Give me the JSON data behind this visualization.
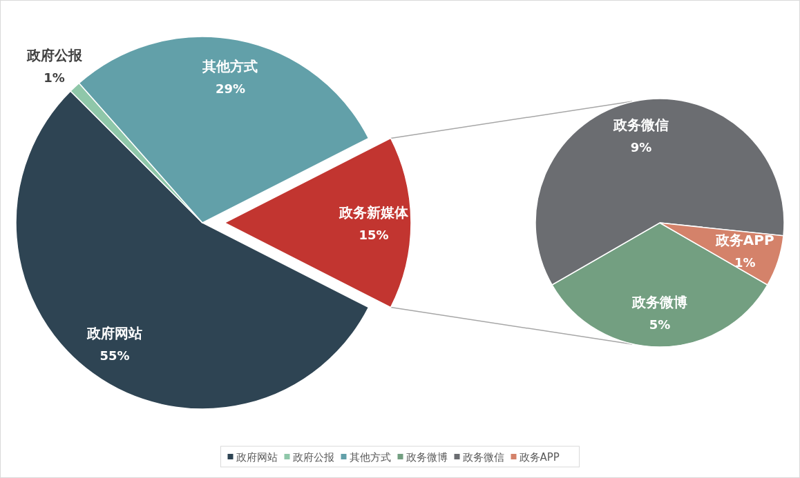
{
  "chart_data": [
    {
      "type": "pie",
      "categories": [
        "政府网站",
        "政府公报",
        "其他方式",
        "政务新媒体"
      ],
      "values": [
        55,
        1,
        29,
        15
      ],
      "colors": [
        "#2e4453",
        "#8fc7a9",
        "#62a0a9",
        "#c23530"
      ],
      "value_labels": [
        "55%",
        "1%",
        "29%",
        "15%"
      ],
      "legend": "bottom"
    },
    {
      "type": "pie",
      "categories": [
        "政务微博",
        "政务微信",
        "政务APP"
      ],
      "values": [
        5,
        9,
        1
      ],
      "colors": [
        "#739f81",
        "#6b6d71",
        "#d4826a"
      ],
      "value_labels": [
        "5%",
        "9%",
        "1%"
      ],
      "legend": "bottom"
    }
  ]
}
